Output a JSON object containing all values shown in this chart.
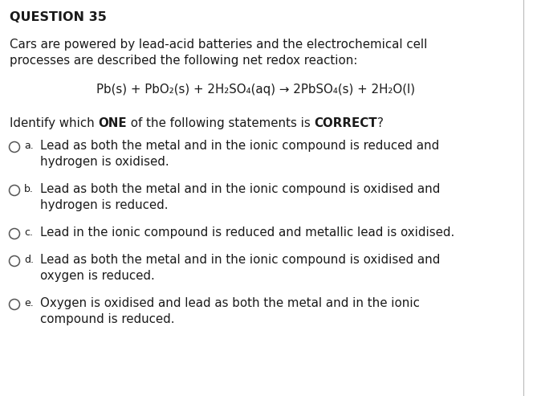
{
  "title": "QUESTION 35",
  "bg_color": "#ffffff",
  "text_color": "#1a1a1a",
  "border_color": "#bbbbbb",
  "intro_line1": "Cars are powered by lead-acid batteries and the electrochemical cell",
  "intro_line2": "processes are described the following net redox reaction:",
  "equation": "Pb(s) + PbO₂(s) + 2H₂SO₄(aq) → 2PbSO₄(s) + 2H₂O(l)",
  "q_part1": "Identify which ",
  "q_bold1": "ONE",
  "q_part2": " of the following statements is ",
  "q_bold2": "CORRECT",
  "q_part3": "?",
  "options": [
    {
      "label": "a",
      "line1": "Lead as both the metal and in the ionic compound is reduced and",
      "line2": "hydrogen is oxidised."
    },
    {
      "label": "b",
      "line1": "Lead as both the metal and in the ionic compound is oxidised and",
      "line2": "hydrogen is reduced."
    },
    {
      "label": "c",
      "line1": "Lead in the ionic compound is reduced and metallic lead is oxidised.",
      "line2": ""
    },
    {
      "label": "d",
      "line1": "Lead as both the metal and in the ionic compound is oxidised and",
      "line2": "oxygen is reduced."
    },
    {
      "label": "e",
      "line1": "Oxygen is oxidised and lead as both the metal and in the ionic",
      "line2": "compound is reduced."
    }
  ],
  "fs_title": 11.5,
  "fs_body": 10.8,
  "fs_label": 9.0
}
